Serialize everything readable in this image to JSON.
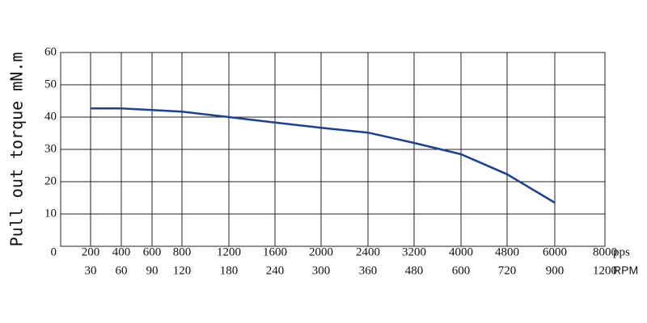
{
  "chart_data": {
    "type": "line",
    "y_label": "Pull out torque mN.m",
    "x_unit": "pps",
    "x2_unit": "RPM",
    "categories": [
      "200",
      "400",
      "600",
      "800",
      "1200",
      "1600",
      "2000",
      "2400",
      "3200",
      "4000",
      "4800",
      "6000",
      "8000"
    ],
    "categories2": [
      "30",
      "60",
      "90",
      "120",
      "180",
      "240",
      "300",
      "360",
      "480",
      "600",
      "720",
      "900",
      "1200"
    ],
    "series": [
      {
        "name": "Pull out torque",
        "color": "#1b4196",
        "values": [
          42.7,
          42.7,
          42.2,
          41.7,
          40,
          38.3,
          36.7,
          35.2,
          32,
          28.5,
          22.3,
          13.5,
          null
        ]
      }
    ],
    "ylim": [
      0,
      60
    ],
    "yticks": [
      0,
      10,
      20,
      30,
      40,
      50,
      60
    ],
    "grid": true
  }
}
